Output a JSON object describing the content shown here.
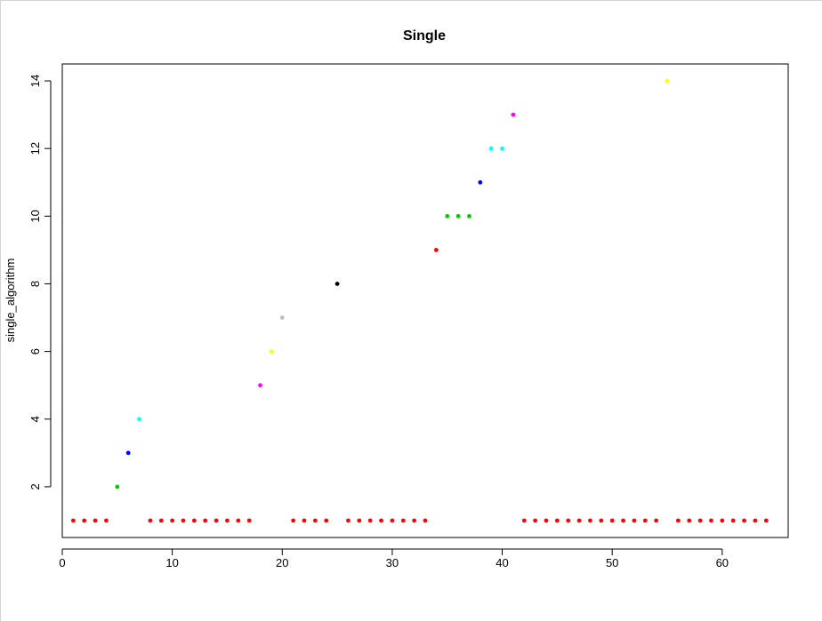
{
  "chart_data": {
    "type": "scatter",
    "title": "Single",
    "xlabel": "",
    "ylabel": "single_algorithm",
    "xlim": [
      0,
      66
    ],
    "ylim": [
      0.5,
      14.5
    ],
    "xticks": [
      0,
      10,
      20,
      30,
      40,
      50,
      60
    ],
    "yticks": [
      2,
      4,
      6,
      8,
      10,
      12,
      14
    ],
    "grid": false,
    "legend": "none",
    "palette": {
      "1": "#ff0000",
      "2": "#00cd00",
      "3": "#0000ff",
      "4": "#00ffff",
      "5": "#ff00ff",
      "6": "#ffff00",
      "7": "#bebebe",
      "8": "#000000"
    },
    "x": [
      1,
      2,
      3,
      4,
      5,
      6,
      7,
      8,
      9,
      10,
      11,
      12,
      13,
      14,
      15,
      16,
      17,
      18,
      19,
      20,
      21,
      22,
      23,
      24,
      25,
      26,
      27,
      28,
      29,
      30,
      31,
      32,
      33,
      34,
      35,
      36,
      37,
      38,
      39,
      40,
      41,
      42,
      43,
      44,
      45,
      46,
      47,
      48,
      49,
      50,
      51,
      52,
      53,
      54,
      55,
      56,
      57,
      58,
      59,
      60,
      61,
      62,
      63,
      64
    ],
    "y": [
      1,
      1,
      1,
      1,
      2,
      3,
      4,
      1,
      1,
      1,
      1,
      1,
      1,
      1,
      1,
      1,
      1,
      5,
      6,
      7,
      1,
      1,
      1,
      1,
      8,
      1,
      1,
      1,
      1,
      1,
      1,
      1,
      1,
      9,
      10,
      10,
      10,
      11,
      12,
      12,
      13,
      1,
      1,
      1,
      1,
      1,
      1,
      1,
      1,
      1,
      1,
      1,
      1,
      1,
      14,
      1,
      1,
      1,
      1,
      1,
      1,
      1,
      1,
      1
    ],
    "colors": [
      "#ff0000",
      "#ff0000",
      "#ff0000",
      "#ff0000",
      "#00cd00",
      "#0000ff",
      "#00ffff",
      "#ff0000",
      "#ff0000",
      "#ff0000",
      "#ff0000",
      "#ff0000",
      "#ff0000",
      "#ff0000",
      "#ff0000",
      "#ff0000",
      "#ff0000",
      "#ff00ff",
      "#ffff00",
      "#bebebe",
      "#ff0000",
      "#ff0000",
      "#ff0000",
      "#ff0000",
      "#000000",
      "#ff0000",
      "#ff0000",
      "#ff0000",
      "#ff0000",
      "#ff0000",
      "#ff0000",
      "#ff0000",
      "#ff0000",
      "#ff0000",
      "#00cd00",
      "#00cd00",
      "#00cd00",
      "#0000ff",
      "#00ffff",
      "#00ffff",
      "#ff00ff",
      "#ff0000",
      "#ff0000",
      "#ff0000",
      "#ff0000",
      "#ff0000",
      "#ff0000",
      "#ff0000",
      "#ff0000",
      "#ff0000",
      "#ff0000",
      "#ff0000",
      "#ff0000",
      "#ff0000",
      "#ffff00",
      "#ff0000",
      "#ff0000",
      "#ff0000",
      "#ff0000",
      "#ff0000",
      "#ff0000",
      "#ff0000",
      "#ff0000",
      "#ff0000"
    ]
  }
}
